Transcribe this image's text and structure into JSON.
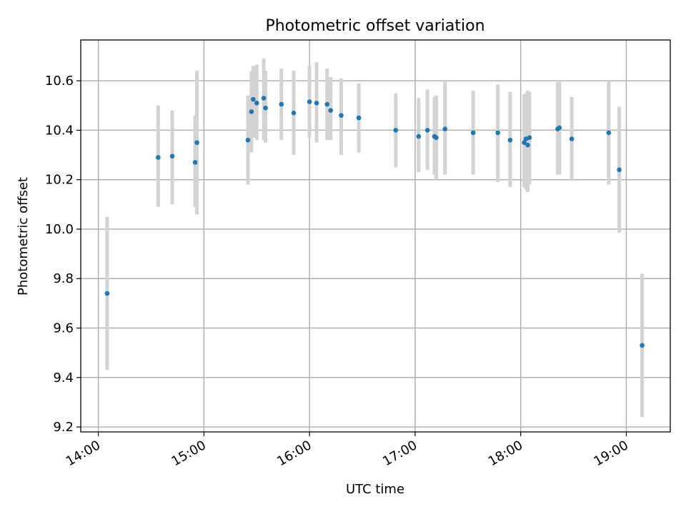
{
  "chart_data": {
    "type": "scatter",
    "title": "Photometric offset variation",
    "xlabel": "UTC time",
    "ylabel": "Photometric offset",
    "x_is_time": true,
    "xlim": [
      "13:50",
      "19:25"
    ],
    "ylim": [
      9.18,
      10.765
    ],
    "xticks": [
      "14:00",
      "15:00",
      "16:00",
      "17:00",
      "18:00",
      "19:00"
    ],
    "yticks": [
      "9.2",
      "9.4",
      "9.6",
      "9.8",
      "10.0",
      "10.2",
      "10.4",
      "10.6"
    ],
    "grid": true,
    "colors": {
      "point": "#1f77b4",
      "errorbar": "#d3d3d3"
    },
    "series": [
      {
        "points": [
          {
            "x": "14:05",
            "y": 9.74,
            "yerr": [
              9.43,
              10.05
            ]
          },
          {
            "x": "14:34",
            "y": 10.29,
            "yerr": [
              10.09,
              10.5
            ]
          },
          {
            "x": "14:42",
            "y": 10.295,
            "yerr": [
              10.1,
              10.48
            ]
          },
          {
            "x": "14:55",
            "y": 10.27,
            "yerr": [
              10.09,
              10.46
            ]
          },
          {
            "x": "14:56",
            "y": 10.35,
            "yerr": [
              10.06,
              10.64
            ]
          },
          {
            "x": "15:25",
            "y": 10.36,
            "yerr": [
              10.18,
              10.54
            ]
          },
          {
            "x": "15:27",
            "y": 10.475,
            "yerr": [
              10.31,
              10.64
            ]
          },
          {
            "x": "15:28",
            "y": 10.525,
            "yerr": [
              10.37,
              10.66
            ]
          },
          {
            "x": "15:30",
            "y": 10.51,
            "yerr": [
              10.36,
              10.665
            ]
          },
          {
            "x": "15:34",
            "y": 10.53,
            "yerr": [
              10.36,
              10.69
            ]
          },
          {
            "x": "15:35",
            "y": 10.49,
            "yerr": [
              10.35,
              10.64
            ]
          },
          {
            "x": "15:44",
            "y": 10.505,
            "yerr": [
              10.36,
              10.65
            ]
          },
          {
            "x": "15:51",
            "y": 10.47,
            "yerr": [
              10.3,
              10.64
            ]
          },
          {
            "x": "16:00",
            "y": 10.515,
            "yerr": [
              10.37,
              10.66
            ]
          },
          {
            "x": "16:04",
            "y": 10.51,
            "yerr": [
              10.35,
              10.675
            ]
          },
          {
            "x": "16:10",
            "y": 10.505,
            "yerr": [
              10.36,
              10.65
            ]
          },
          {
            "x": "16:12",
            "y": 10.48,
            "yerr": [
              10.36,
              10.615
            ]
          },
          {
            "x": "16:18",
            "y": 10.46,
            "yerr": [
              10.3,
              10.61
            ]
          },
          {
            "x": "16:28",
            "y": 10.45,
            "yerr": [
              10.31,
              10.59
            ]
          },
          {
            "x": "16:49",
            "y": 10.4,
            "yerr": [
              10.25,
              10.55
            ]
          },
          {
            "x": "17:02",
            "y": 10.375,
            "yerr": [
              10.23,
              10.53
            ]
          },
          {
            "x": "17:07",
            "y": 10.4,
            "yerr": [
              10.24,
              10.565
            ]
          },
          {
            "x": "17:11",
            "y": 10.375,
            "yerr": [
              10.22,
              10.535
            ]
          },
          {
            "x": "17:12",
            "y": 10.37,
            "yerr": [
              10.2,
              10.54
            ]
          },
          {
            "x": "17:17",
            "y": 10.405,
            "yerr": [
              10.22,
              10.6
            ]
          },
          {
            "x": "17:33",
            "y": 10.39,
            "yerr": [
              10.22,
              10.56
            ]
          },
          {
            "x": "17:47",
            "y": 10.39,
            "yerr": [
              10.19,
              10.585
            ]
          },
          {
            "x": "17:54",
            "y": 10.36,
            "yerr": [
              10.17,
              10.555
            ]
          },
          {
            "x": "18:02",
            "y": 10.35,
            "yerr": [
              10.17,
              10.545
            ]
          },
          {
            "x": "18:03",
            "y": 10.365,
            "yerr": [
              10.16,
              10.55
            ]
          },
          {
            "x": "18:04",
            "y": 10.34,
            "yerr": [
              10.15,
              10.56
            ]
          },
          {
            "x": "18:05",
            "y": 10.37,
            "yerr": [
              10.18,
              10.555
            ]
          },
          {
            "x": "18:21",
            "y": 10.405,
            "yerr": [
              10.22,
              10.595
            ]
          },
          {
            "x": "18:22",
            "y": 10.41,
            "yerr": [
              10.22,
              10.6
            ]
          },
          {
            "x": "18:29",
            "y": 10.365,
            "yerr": [
              10.2,
              10.535
            ]
          },
          {
            "x": "18:50",
            "y": 10.39,
            "yerr": [
              10.18,
              10.6
            ]
          },
          {
            "x": "18:56",
            "y": 10.24,
            "yerr": [
              9.985,
              10.495
            ]
          },
          {
            "x": "19:09",
            "y": 9.53,
            "yerr": [
              9.24,
              9.82
            ]
          }
        ]
      }
    ]
  }
}
